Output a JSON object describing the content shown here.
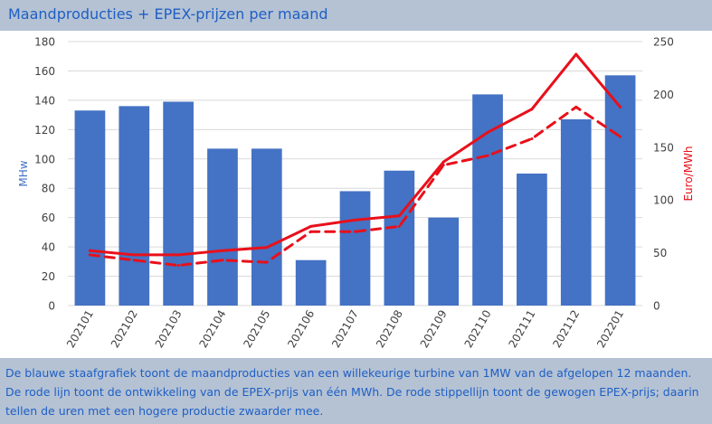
{
  "header": {
    "title": "Maandproducties + EPEX-prijzen per maand"
  },
  "footer": {
    "description": "De blauwe staafgrafiek toont de maandproducties van een willekeurige turbine van 1MW van de afgelopen 12 maanden. De rode lijn toont de ontwikkeling van de EPEX-prijs van één MWh. De rode stippellijn toont de gewogen EPEX-prijs; daarin tellen de uren met een hogere productie zwaarder mee."
  },
  "colors": {
    "bar": "#4472c4",
    "line": "#e8101a",
    "axis_left": "#4472c4",
    "axis_right": "#e8101a",
    "grid": "#d9d9d9",
    "tick": "#404040"
  },
  "chart_data": {
    "type": "bar",
    "categories": [
      "202101",
      "202102",
      "202103",
      "202104",
      "202105",
      "202106",
      "202107",
      "202108",
      "202109",
      "202110",
      "202111",
      "202112",
      "202201"
    ],
    "ylabel": "MHw",
    "ylabel_right": "Euro/MWh",
    "ylim": [
      0,
      180
    ],
    "ylim_right": [
      0,
      250
    ],
    "yticks": [
      "0",
      "20",
      "40",
      "60",
      "80",
      "100",
      "120",
      "140",
      "160",
      "180"
    ],
    "yticks_right": [
      "0",
      "50",
      "100",
      "150",
      "200",
      "250"
    ],
    "grid": true,
    "series": [
      {
        "type": "bar",
        "axis": "left",
        "values": [
          133,
          136,
          139,
          107,
          107,
          31,
          78,
          92,
          60,
          144,
          90,
          127,
          157
        ]
      },
      {
        "type": "line",
        "style": "solid",
        "axis": "right",
        "values": [
          52,
          48,
          48,
          52,
          55,
          75,
          81,
          85,
          136,
          164,
          186,
          238,
          188
        ]
      },
      {
        "type": "line",
        "style": "dashed",
        "axis": "right",
        "values": [
          48,
          43,
          38,
          43,
          41,
          70,
          70,
          75,
          133,
          142,
          158,
          188,
          160
        ]
      }
    ]
  }
}
